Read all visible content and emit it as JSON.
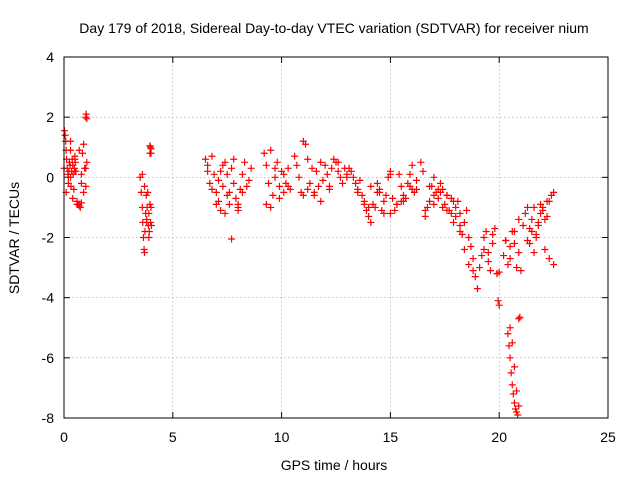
{
  "chart_data": {
    "type": "scatter",
    "title": "Day 179 of 2018, Sidereal Day-to-day VTEC variation (SDTVAR) for receiver nium",
    "xlabel": "GPS time / hours",
    "ylabel": "SDTVAR / TECUs",
    "xlim": [
      0,
      25
    ],
    "ylim": [
      -8,
      4
    ],
    "xticks": [
      0,
      5,
      10,
      15,
      20,
      25
    ],
    "xtick_labels": [
      "0",
      "5",
      "10",
      "15",
      "20",
      "25"
    ],
    "yticks": [
      -8,
      -6,
      -4,
      -2,
      0,
      2,
      4
    ],
    "ytick_labels": [
      "-8",
      "-6",
      "-4",
      "-2",
      "0",
      "2",
      "4"
    ],
    "grid": true,
    "marker": "+",
    "marker_color": "#ff0000",
    "series": [
      {
        "name": "SDTVAR",
        "x": [
          0.02,
          0.05,
          0.08,
          0.1,
          0.12,
          0.15,
          0.18,
          0.2,
          0.22,
          0.25,
          0.28,
          0.3,
          0.32,
          0.35,
          0.38,
          0.4,
          0.42,
          0.45,
          0.48,
          0.5,
          0.52,
          0.55,
          0.6,
          0.65,
          0.7,
          0.75,
          0.8,
          0.85,
          0.9,
          0.95,
          1.0,
          1.05,
          0.1,
          0.2,
          0.3,
          0.4,
          0.5,
          0.6,
          0.7,
          0.8,
          0.9,
          0.0,
          0.3,
          0.5,
          0.8,
          1.0,
          1.0,
          1.02,
          1.05,
          3.5,
          3.55,
          3.6,
          3.62,
          3.65,
          3.68,
          3.7,
          3.72,
          3.75,
          3.78,
          3.8,
          3.82,
          3.85,
          3.88,
          3.9,
          3.92,
          3.95,
          3.98,
          4.0,
          4.02,
          3.6,
          3.7,
          3.8,
          3.9,
          3.95,
          4.0,
          3.95,
          3.97,
          4.0,
          6.5,
          6.6,
          6.7,
          6.8,
          6.9,
          7.0,
          7.1,
          7.2,
          7.3,
          7.4,
          7.5,
          7.6,
          7.7,
          7.8,
          7.9,
          8.0,
          8.1,
          8.2,
          8.3,
          8.4,
          8.5,
          8.6,
          6.6,
          6.8,
          7.0,
          7.2,
          7.4,
          7.6,
          7.8,
          8.0,
          8.2,
          7.1,
          7.3,
          7.7,
          8.0,
          7.5,
          9.2,
          9.3,
          9.4,
          9.5,
          9.6,
          9.7,
          9.8,
          9.9,
          10.0,
          10.1,
          10.2,
          10.3,
          10.4,
          9.3,
          9.5,
          9.7,
          9.9,
          10.1,
          10.3,
          10.6,
          10.7,
          10.8,
          10.9,
          11.0,
          11.1,
          11.2,
          11.3,
          11.4,
          11.5,
          11.6,
          11.7,
          11.8,
          11.9,
          12.0,
          12.1,
          12.2,
          12.3,
          12.4,
          12.5,
          12.6,
          12.7,
          12.8,
          12.9,
          13.0,
          11.0,
          11.2,
          11.5,
          11.8,
          12.2,
          12.6,
          13.0,
          13.1,
          13.2,
          13.3,
          13.4,
          13.5,
          13.6,
          13.7,
          13.8,
          13.9,
          14.0,
          14.1,
          14.2,
          14.3,
          14.4,
          14.5,
          14.6,
          14.7,
          14.8,
          14.9,
          15.0,
          15.1,
          15.2,
          15.3,
          15.4,
          15.5,
          15.6,
          15.7,
          15.8,
          15.9,
          16.0,
          16.1,
          16.2,
          13.5,
          13.8,
          14.1,
          14.4,
          14.7,
          15.0,
          15.3,
          15.6,
          15.9,
          16.2,
          14.0,
          14.5,
          15.0,
          15.5,
          16.0,
          16.4,
          16.5,
          16.6,
          16.7,
          16.8,
          16.9,
          17.0,
          17.1,
          17.2,
          17.3,
          17.4,
          17.5,
          17.6,
          17.7,
          17.8,
          17.9,
          18.0,
          18.1,
          18.2,
          18.3,
          18.4,
          18.5,
          18.6,
          18.7,
          18.8,
          18.9,
          19.0,
          16.6,
          16.8,
          17.0,
          17.2,
          17.4,
          17.6,
          17.8,
          18.0,
          18.2,
          18.4,
          18.6,
          18.8,
          17.0,
          17.3,
          17.6,
          17.9,
          18.2,
          19.1,
          19.2,
          19.3,
          19.4,
          19.5,
          19.6,
          19.7,
          19.8,
          19.9,
          20.0,
          19.3,
          19.5,
          19.7,
          19.9,
          19.95,
          20.0,
          20.2,
          20.3,
          20.4,
          20.5,
          20.6,
          20.7,
          20.8,
          20.9,
          21.0,
          20.3,
          20.5,
          20.7,
          20.9,
          20.4,
          20.45,
          20.5,
          20.55,
          20.6,
          20.65,
          20.7,
          20.75,
          20.8,
          20.85,
          20.9,
          20.95,
          20.5,
          20.6,
          20.7,
          20.8,
          20.9,
          21.1,
          21.2,
          21.3,
          21.4,
          21.5,
          21.6,
          21.7,
          21.8,
          21.9,
          22.0,
          22.1,
          22.2,
          22.3,
          22.4,
          22.5,
          21.3,
          21.5,
          21.7,
          21.9,
          22.1,
          22.3,
          22.5,
          21.4,
          21.6,
          21.8,
          22.0,
          22.2
        ],
        "y": [
          1.55,
          1.4,
          1.2,
          0.9,
          0.6,
          0.3,
          0.1,
          -0.2,
          0.2,
          0.5,
          0.4,
          0.0,
          -0.3,
          0.2,
          0.6,
          0.4,
          0.1,
          -0.4,
          0.3,
          0.7,
          0.5,
          0.2,
          -0.8,
          -0.9,
          -0.95,
          -1.0,
          -0.85,
          0.8,
          1.1,
          0.3,
          -0.3,
          0.5,
          -0.5,
          0.0,
          0.9,
          -0.7,
          0.2,
          -0.9,
          0.9,
          0.1,
          -0.5,
          0.3,
          1.2,
          0.6,
          -0.2,
          0.3,
          2.0,
          2.1,
          1.95,
          0.0,
          -0.5,
          -1.0,
          -1.5,
          -2.0,
          -2.4,
          -2.5,
          -1.8,
          -1.2,
          -0.6,
          -1.5,
          -1.0,
          -0.5,
          -1.6,
          -1.2,
          -1.8,
          -0.9,
          -1.5,
          -1.0,
          -1.6,
          0.1,
          -0.3,
          -1.4,
          -2.0,
          0.8,
          0.95,
          1.05,
          1.0,
          0.8,
          0.6,
          0.2,
          -0.2,
          0.7,
          0.1,
          -0.5,
          -0.8,
          -1.1,
          -0.3,
          0.5,
          -0.6,
          -0.9,
          0.3,
          -0.2,
          -0.7,
          -1.0,
          -0.4,
          0.1,
          0.5,
          -0.3,
          -0.1,
          0.3,
          0.4,
          -0.4,
          -0.9,
          0.2,
          -1.2,
          -0.5,
          0.6,
          -1.1,
          -0.5,
          -0.1,
          0.4,
          -2.05,
          -0.9,
          0.1,
          0.8,
          0.4,
          -0.2,
          -1.0,
          -0.6,
          0.0,
          0.5,
          -0.3,
          0.2,
          -0.5,
          -0.2,
          0.3,
          -0.4,
          -0.9,
          0.9,
          0.3,
          -0.7,
          0.1,
          -0.3,
          0.7,
          0.4,
          0.0,
          -0.5,
          1.2,
          1.1,
          0.6,
          -0.2,
          0.3,
          -0.6,
          0.2,
          -0.3,
          0.5,
          -0.1,
          0.4,
          0.1,
          -0.4,
          0.3,
          0.6,
          0.5,
          0.2,
          0.0,
          -0.2,
          0.3,
          0.0,
          -0.6,
          -0.4,
          -0.5,
          -0.8,
          -0.3,
          0.5,
          0.1,
          0.3,
          0.2,
          0.0,
          -0.2,
          -0.4,
          -0.1,
          -0.6,
          -0.8,
          -1.1,
          -1.3,
          -0.3,
          -0.9,
          -1.0,
          -0.5,
          -0.4,
          -1.1,
          -1.2,
          -0.6,
          0.0,
          0.2,
          -0.7,
          -1.1,
          -0.9,
          0.1,
          -0.3,
          -0.8,
          -0.7,
          -0.2,
          0.1,
          -0.4,
          -0.5,
          -0.1,
          -0.5,
          -0.9,
          -1.5,
          -0.2,
          -0.8,
          -1.2,
          -0.9,
          -0.6,
          -0.3,
          -0.4,
          -1.0,
          -0.5,
          0.1,
          -0.8,
          0.4,
          0.5,
          0.2,
          -1.1,
          -1.0,
          -0.8,
          -0.3,
          -0.6,
          -0.5,
          -0.7,
          -0.2,
          -0.4,
          -0.9,
          -0.6,
          -1.1,
          -0.7,
          -1.5,
          -1.3,
          -0.8,
          -1.2,
          -1.9,
          -1.5,
          -1.1,
          -2.0,
          -2.3,
          -2.7,
          -3.3,
          -3.7,
          -1.3,
          -0.3,
          -0.9,
          -0.4,
          -1.0,
          -0.6,
          -1.2,
          -1.0,
          -1.6,
          -2.4,
          -2.9,
          -3.1,
          0.0,
          -0.5,
          -1.1,
          -0.8,
          -1.8,
          -3.0,
          -2.6,
          -2.0,
          -1.8,
          -2.5,
          -3.1,
          -2.2,
          -1.7,
          -3.2,
          -3.15,
          -2.4,
          -2.8,
          -1.9,
          -3.2,
          -4.1,
          -4.25,
          -2.6,
          -2.1,
          -2.9,
          -2.3,
          -1.8,
          -2.2,
          -3.0,
          -2.5,
          -3.1,
          -2.1,
          -2.7,
          -1.8,
          -1.4,
          -5.2,
          -5.6,
          -6.0,
          -6.5,
          -6.9,
          -7.2,
          -7.5,
          -7.7,
          -7.8,
          -7.9,
          -4.7,
          -4.65,
          -5.0,
          -5.5,
          -6.3,
          -7.1,
          -7.6,
          -1.6,
          -1.2,
          -2.1,
          -1.7,
          -1.4,
          -1.0,
          -1.9,
          -1.5,
          -0.9,
          -1.1,
          -2.4,
          -1.3,
          -0.8,
          -0.6,
          -0.5,
          -1.0,
          -1.8,
          -2.0,
          -1.2,
          -1.4,
          -2.7,
          -2.9,
          -2.2,
          -2.5,
          -1.6,
          -1.0,
          -0.8
        ]
      }
    ]
  }
}
